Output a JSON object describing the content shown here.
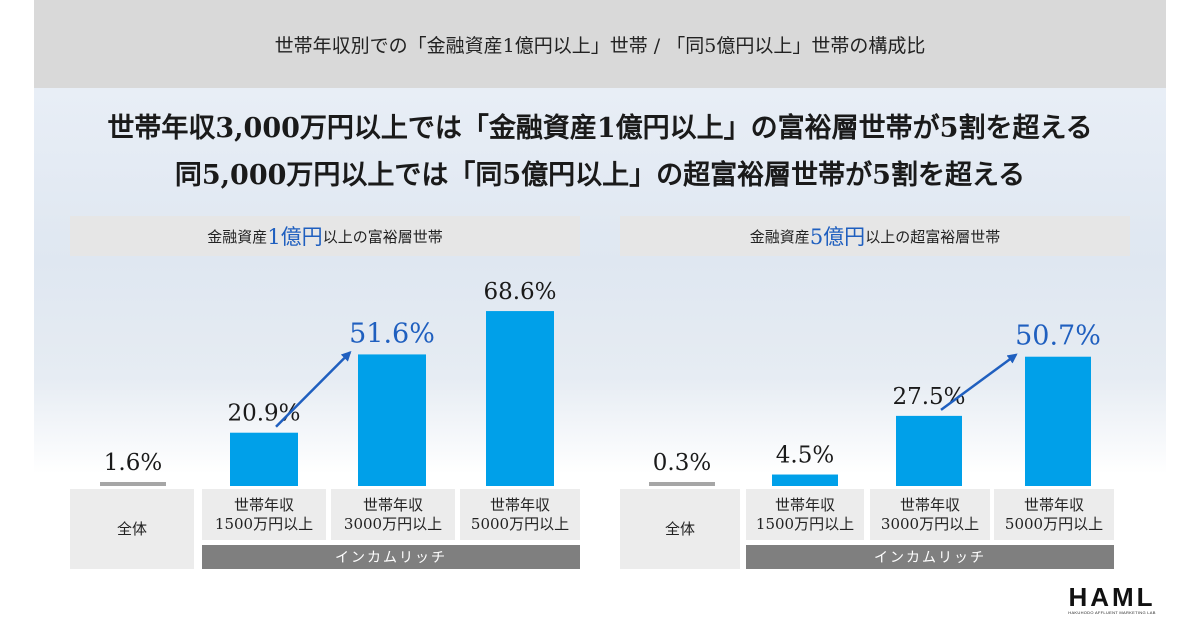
{
  "header": {
    "title": "世帯年収別での「金融資産1億円以上」世帯 / 「同5億円以上」世帯の構成比"
  },
  "headline": {
    "line1": "世帯年収3,000万円以上では「金融資産1億円以上」の富裕層世帯が5割を超える",
    "line2": "同5,000万円以上では「同5億円以上」の超富裕層世帯が5割を超える"
  },
  "left_chart": {
    "title_pre": "金融資産",
    "title_accent": "1億円",
    "title_post": "以上の富裕層世帯"
  },
  "right_chart": {
    "title_pre": "金融資産",
    "title_accent": "5億円",
    "title_post": "以上の超富裕層世帯"
  },
  "categories": {
    "all": "全体",
    "c1_line1": "世帯年収",
    "c1_line2": "1500万円以上",
    "c2_line1": "世帯年収",
    "c2_line2": "3000万円以上",
    "c3_line1": "世帯年収",
    "c3_line2": "5000万円以上",
    "group": "インカムリッチ"
  },
  "colors": {
    "bar": "#00a0e9",
    "bar_base": "#a6a6a6",
    "highlight": "#1f5fbf",
    "text": "#1a1a1a"
  },
  "logo": {
    "name": "HAML",
    "tagline": "HAKUHODO AFFLUENT MARKETING LAB"
  },
  "chart_data": [
    {
      "type": "bar",
      "title": "金融資産1億円以上の富裕層世帯",
      "categories": [
        "全体",
        "世帯年収1500万円以上",
        "世帯年収3000万円以上",
        "世帯年収5000万円以上"
      ],
      "values": [
        1.6,
        20.9,
        51.6,
        68.6
      ],
      "labels": [
        "1.6%",
        "20.9%",
        "51.6%",
        "68.6%"
      ],
      "highlight_index": 2,
      "ylim": [
        0,
        70
      ]
    },
    {
      "type": "bar",
      "title": "金融資産5億円以上の超富裕層世帯",
      "categories": [
        "全体",
        "世帯年収1500万円以上",
        "世帯年収3000万円以上",
        "世帯年収5000万円以上"
      ],
      "values": [
        0.3,
        4.5,
        27.5,
        50.7
      ],
      "labels": [
        "0.3%",
        "4.5%",
        "27.5%",
        "50.7%"
      ],
      "highlight_index": 3,
      "ylim": [
        0,
        70
      ]
    }
  ]
}
